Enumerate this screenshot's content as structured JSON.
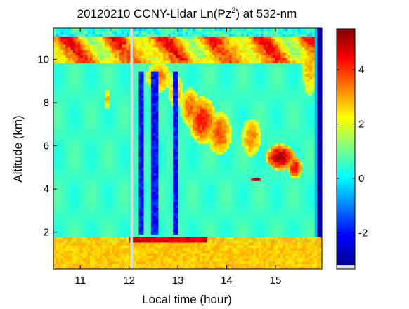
{
  "chart_data": {
    "type": "heatmap",
    "title_main": "20120210 CCNY-Lidar Ln(Pz",
    "title_sup": "2",
    "title_tail": ") at 532-nm",
    "xlabel": "Local time (hour)",
    "ylabel": "Altitude (km)",
    "xlim": [
      10.45,
      15.95
    ],
    "ylim": [
      0.3,
      11.45
    ],
    "x_ticks": [
      11,
      12,
      13,
      14,
      15
    ],
    "y_ticks": [
      2,
      4,
      6,
      8,
      10
    ],
    "colorbar": {
      "range": [
        -3.2,
        5.5
      ],
      "ticks": [
        -2,
        0,
        2,
        4
      ],
      "colormap": "jet",
      "stops": [
        "#00008f",
        "#0000ff",
        "#0080ff",
        "#00ffff",
        "#80ff80",
        "#ffff00",
        "#ff8000",
        "#ff0000",
        "#800000"
      ]
    },
    "features": [
      {
        "kind": "boundary_layer",
        "x": [
          10.45,
          15.95
        ],
        "y": [
          0.3,
          1.75
        ],
        "value": 2.9
      },
      {
        "kind": "boundary_layer_top",
        "x": [
          12.0,
          13.6
        ],
        "y": 1.7,
        "value": 4.5
      },
      {
        "kind": "cirrus_top",
        "x": [
          10.6,
          15.9
        ],
        "y": [
          9.9,
          11.2
        ],
        "value": 3.5
      },
      {
        "kind": "cloud",
        "x": [
          13.3,
          14.0
        ],
        "y": [
          5.8,
          8.5
        ],
        "value": 4.0
      },
      {
        "kind": "cloud",
        "x": [
          14.9,
          15.5
        ],
        "y": [
          4.6,
          6.2
        ],
        "value": 5.0
      },
      {
        "kind": "cloud",
        "x": [
          14.45,
          14.75
        ],
        "y": [
          4.3,
          4.6
        ],
        "value": 5.3
      },
      {
        "kind": "data_gap",
        "x": 12.05,
        "value": null
      },
      {
        "kind": "low_signal_column",
        "x": [
          12.2,
          13.2
        ],
        "value": -2.5
      },
      {
        "kind": "low_signal_column",
        "x": [
          15.85,
          15.95
        ],
        "value": -2.8
      }
    ]
  }
}
